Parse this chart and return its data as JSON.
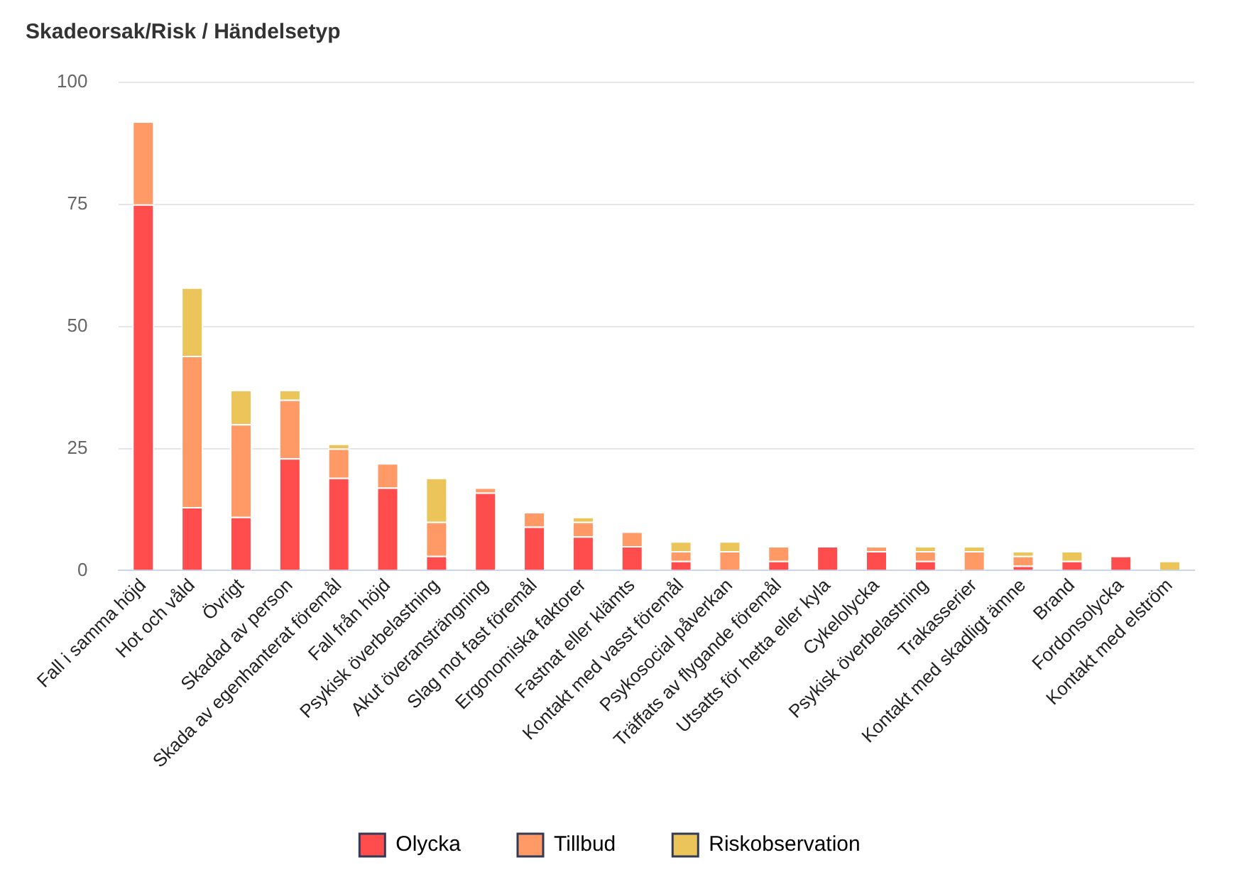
{
  "chart_data": {
    "type": "bar",
    "title": "Skadeorsak/Risk / Händelsetyp",
    "stacked": true,
    "grid": "y",
    "legend": "bottom",
    "categories": [
      "Fall i samma höjd",
      "Hot och våld",
      "Övrigt",
      "Skadad av person",
      "Skada av egenhanterat föremål",
      "Fall från höjd",
      "Psykisk överbelastning",
      "Akut överansträngning",
      "Slag mot fast föremål",
      "Ergonomiska faktorer",
      "Fastnat eller klämts",
      "Kontakt med vasst föremål",
      "Psykosocial påverkan",
      "Träffats av flygande föremål",
      "Utsatts för hetta eller kyla",
      "Cykelolycka",
      "Psykisk överbelastning",
      "Trakasserier",
      "Kontakt med skadligt ämne",
      "Brand",
      "Fordonsolycka",
      "Kontakt med elström"
    ],
    "ylim": [
      0,
      100
    ],
    "yticks": [
      0,
      25,
      50,
      75,
      100
    ],
    "series": [
      {
        "name": "Olycka",
        "color": "#ff4d4d",
        "values": [
          75,
          13,
          11,
          23,
          19,
          17,
          3,
          16,
          9,
          7,
          5,
          2,
          0,
          2,
          5,
          4,
          2,
          0,
          1,
          2,
          3,
          0
        ]
      },
      {
        "name": "Tillbud",
        "color": "#ff9966",
        "values": [
          17,
          31,
          19,
          12,
          6,
          5,
          7,
          1,
          3,
          3,
          3,
          2,
          4,
          3,
          0,
          1,
          2,
          4,
          2,
          0,
          0,
          0
        ]
      },
      {
        "name": "Riskobservation",
        "color": "#ebc55a",
        "values": [
          0,
          14,
          7,
          2,
          1,
          0,
          9,
          0,
          0,
          1,
          0,
          2,
          2,
          0,
          0,
          0,
          1,
          1,
          1,
          2,
          0,
          2
        ]
      }
    ]
  }
}
